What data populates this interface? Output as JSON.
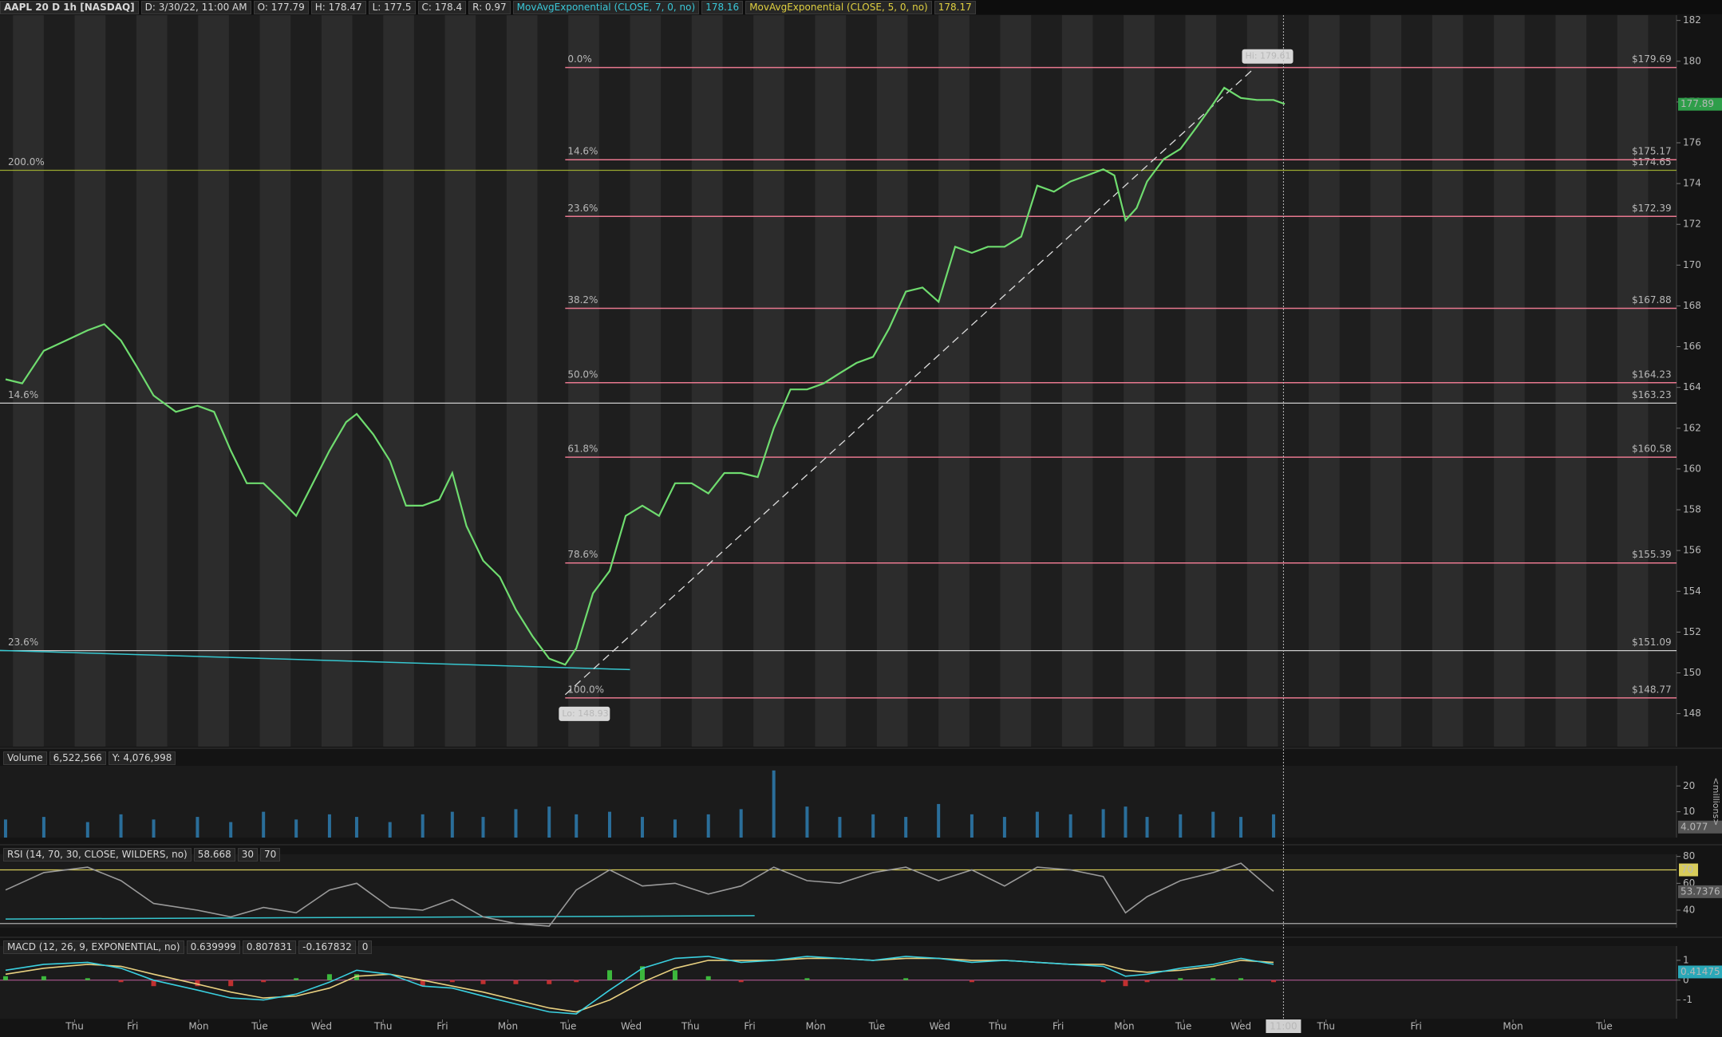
{
  "header": {
    "items": [
      "AAPL 20 D 1h [NASDAQ]",
      "D: 3/30/22, 11:00 AM",
      "O: 177.79",
      "H: 178.47",
      "L: 177.5",
      "C: 178.4",
      "R: 0.97"
    ],
    "studies": [
      {
        "label": "MovAvgExponential (CLOSE, 7, 0, no)",
        "value": "178.16",
        "color": "#3ac7d8"
      },
      {
        "label": "MovAvgExponential (CLOSE, 5, 0, no)",
        "value": "178.17",
        "color": "#e0d040"
      }
    ]
  },
  "chart_data": [
    {
      "type": "line",
      "x": [
        -1.12,
        -0.85,
        -0.5,
        -0.14,
        0.21,
        0.48,
        0.75,
        1.01,
        1.28,
        1.64,
        1.99,
        2.26,
        2.53,
        2.79,
        3.06,
        3.33,
        3.59,
        3.86,
        4.13,
        4.4,
        4.57,
        4.84,
        5.11,
        5.37,
        5.64,
        5.91,
        6.12,
        6.35,
        6.62,
        6.89,
        7.15,
        7.42,
        7.69,
        7.95,
        8.13,
        8.4,
        8.67,
        8.93,
        9.2,
        9.47,
        9.73,
        10.0,
        10.27,
        10.53,
        10.8,
        11.07,
        11.33,
        11.6,
        11.87,
        12.14,
        12.4,
        12.67,
        12.94,
        13.2,
        13.47,
        13.74,
        14.0,
        14.27,
        14.54,
        14.8,
        15.07,
        15.34,
        15.6,
        15.87,
        16.14,
        16.41,
        16.67,
        16.85,
        17.03,
        17.21,
        17.38,
        17.65,
        17.92,
        18.19,
        18.45,
        18.63,
        18.9,
        19.16,
        19.43,
        19.61
      ],
      "series": [
        {
          "color": "#6fdc6f",
          "values": [
            164.4,
            164.2,
            165.8,
            166.3,
            166.8,
            167.1,
            166.3,
            165.0,
            163.6,
            162.8,
            163.1,
            162.8,
            160.9,
            159.3,
            159.3,
            158.5,
            157.7,
            159.3,
            160.9,
            162.3,
            162.7,
            161.7,
            160.4,
            158.2,
            158.2,
            158.5,
            159.8,
            157.2,
            155.5,
            154.7,
            153.1,
            151.8,
            150.7,
            150.4,
            151.2,
            153.9,
            155.0,
            157.7,
            158.2,
            157.7,
            159.3,
            159.3,
            158.8,
            159.8,
            159.8,
            159.6,
            162.0,
            163.9,
            163.9,
            164.2,
            164.7,
            165.2,
            165.5,
            166.9,
            168.7,
            168.9,
            168.2,
            170.9,
            170.6,
            170.9,
            170.9,
            171.4,
            173.9,
            173.6,
            174.1,
            174.4,
            174.7,
            174.4,
            172.2,
            172.8,
            174.1,
            175.2,
            175.7,
            176.8,
            177.9,
            178.7,
            178.2,
            178.1,
            178.1,
            177.9
          ]
        }
      ],
      "xlim": [
        -1.21,
        25.96
      ],
      "xticks": [
        {
          "value": 0,
          "label": "Thu"
        },
        {
          "value": 0.94,
          "label": "Fri"
        },
        {
          "value": 2.01,
          "label": "Mon"
        },
        {
          "value": 3.0,
          "label": "Tue"
        },
        {
          "value": 4.0,
          "label": "Wed"
        },
        {
          "value": 5.0,
          "label": "Thu"
        },
        {
          "value": 5.96,
          "label": "Fri"
        },
        {
          "value": 7.02,
          "label": "Mon"
        },
        {
          "value": 8.0,
          "label": "Tue"
        },
        {
          "value": 9.02,
          "label": "Wed"
        },
        {
          "value": 9.98,
          "label": "Thu"
        },
        {
          "value": 10.94,
          "label": "Fri"
        },
        {
          "value": 12.01,
          "label": "Mon"
        },
        {
          "value": 13.0,
          "label": "Tue"
        },
        {
          "value": 14.02,
          "label": "Wed"
        },
        {
          "value": 14.96,
          "label": "Thu"
        },
        {
          "value": 15.94,
          "label": "Fri"
        },
        {
          "value": 17.01,
          "label": "Mon"
        },
        {
          "value": 17.97,
          "label": "Tue"
        },
        {
          "value": 18.9,
          "label": "Wed"
        },
        {
          "value": 19.59,
          "label": "11:00",
          "highlight": true
        },
        {
          "value": 20.28,
          "label": "Thu"
        },
        {
          "value": 21.74,
          "label": "Fri"
        },
        {
          "value": 23.31,
          "label": "Mon"
        },
        {
          "value": 24.79,
          "label": "Tue"
        }
      ],
      "ylim": [
        146.38,
        182.26
      ],
      "yticks": [
        148,
        150,
        152,
        154,
        156,
        158,
        160,
        162,
        164,
        166,
        168,
        170,
        172,
        174,
        176,
        178,
        180,
        182
      ],
      "fib_color": "#e8788f",
      "fib_levels": [
        {
          "label": "0.0%",
          "value": 179.69,
          "value_label": "$179.69"
        },
        {
          "label": "14.6%",
          "value": 175.17,
          "value_label": "$175.17"
        },
        {
          "label": "23.6%",
          "value": 172.39,
          "value_label": "$172.39"
        },
        {
          "label": "38.2%",
          "value": 167.88,
          "value_label": "$167.88"
        },
        {
          "label": "50.0%",
          "value": 164.23,
          "value_label": "$164.23"
        },
        {
          "label": "61.8%",
          "value": 160.58,
          "value_label": "$160.58"
        },
        {
          "label": "78.6%",
          "value": 155.39,
          "value_label": "$155.39"
        },
        {
          "label": "100.0%",
          "value": 148.77,
          "value_label": "$148.77"
        }
      ],
      "ref_lines": [
        {
          "label": "200.0%",
          "value": 174.65,
          "value_label": "$174.65",
          "color": "#9aa830"
        },
        {
          "label": "14.6%",
          "value": 163.23,
          "value_label": "$163.23",
          "color": "#cccccc"
        },
        {
          "label": "23.6%",
          "value": 151.09,
          "value_label": "$151.09",
          "color": "#cccccc"
        }
      ],
      "high": {
        "x": 19.1,
        "value": 179.61,
        "label": "Hi: 179.61"
      },
      "low": {
        "x": 7.95,
        "value": 148.93,
        "label": "Lo: 148.93"
      },
      "trendline": {
        "color": "#36c6cf",
        "x": [
          -1.21,
          9.0
        ],
        "values": [
          151.1,
          150.16
        ]
      },
      "last": {
        "value": 177.89,
        "color": "#2f9e4a"
      }
    },
    {
      "type": "bar",
      "header_items": [
        "Volume",
        "6,522,566",
        "Y: 4,076,998"
      ],
      "x": [
        -1.12,
        -0.5,
        0.21,
        0.75,
        1.28,
        1.99,
        2.53,
        3.06,
        3.59,
        4.13,
        4.57,
        5.11,
        5.64,
        6.12,
        6.62,
        7.15,
        7.69,
        8.13,
        8.67,
        9.2,
        9.73,
        10.27,
        10.8,
        11.33,
        11.87,
        12.4,
        12.94,
        13.47,
        14.0,
        14.54,
        15.07,
        15.6,
        16.14,
        16.67,
        17.03,
        17.38,
        17.92,
        18.45,
        18.9,
        19.43
      ],
      "values": [
        7,
        8,
        6,
        9,
        7,
        8,
        6,
        10,
        7,
        9,
        8,
        6,
        9,
        10,
        8,
        11,
        12,
        9,
        10,
        8,
        7,
        9,
        11,
        26,
        12,
        8,
        9,
        8,
        13,
        9,
        8,
        10,
        9,
        11,
        12,
        8,
        9,
        10,
        8,
        9
      ],
      "color": "#2a6e9a",
      "xlim": [
        -1.21,
        25.96
      ],
      "ylim": [
        0,
        27.8
      ],
      "yticks": [
        10,
        20
      ],
      "unit": "<millions>",
      "last": {
        "value": 4.077,
        "color": "#555555"
      }
    },
    {
      "type": "line",
      "header_items": [
        "RSI (14, 70, 30, CLOSE, WILDERS, no)",
        "58.668",
        "30",
        "70"
      ],
      "x": [
        -1.12,
        -0.5,
        0.21,
        0.75,
        1.28,
        1.99,
        2.53,
        3.06,
        3.59,
        4.13,
        4.57,
        5.11,
        5.64,
        6.12,
        6.62,
        7.15,
        7.69,
        8.13,
        8.67,
        9.2,
        9.73,
        10.27,
        10.8,
        11.33,
        11.87,
        12.4,
        12.94,
        13.47,
        14.0,
        14.54,
        15.07,
        15.6,
        16.14,
        16.67,
        17.03,
        17.38,
        17.92,
        18.45,
        18.9,
        19.43
      ],
      "series": [
        {
          "color": "#9a9a9a",
          "values": [
            55,
            68,
            72,
            62,
            45,
            40,
            35,
            42,
            38,
            55,
            60,
            42,
            40,
            48,
            35,
            30,
            28,
            55,
            70,
            58,
            60,
            52,
            58,
            72,
            62,
            60,
            68,
            72,
            62,
            70,
            58,
            72,
            70,
            65,
            38,
            50,
            62,
            68,
            75,
            54
          ]
        }
      ],
      "xlim": [
        -1.21,
        25.96
      ],
      "ylim": [
        26.9,
        81.6
      ],
      "yticks": [
        40,
        60,
        80
      ],
      "ref_lines": [
        {
          "value": 70,
          "color": "#d8cc5a",
          "show_value": true
        },
        {
          "value": 30,
          "color": "#aaaaaa"
        }
      ],
      "trendline": {
        "color": "#36c6cf",
        "x": [
          -1.12,
          11.02
        ],
        "values": [
          33.4,
          35.9
        ]
      },
      "last": {
        "value": 53.7376,
        "color": "#555555"
      }
    },
    {
      "type": "line",
      "header_items": [
        "MACD (12, 26, 9, EXPONENTIAL, no)",
        "0.639999",
        "0.807831",
        "-0.167832",
        "0"
      ],
      "x": [
        -1.12,
        -0.5,
        0.21,
        0.75,
        1.28,
        1.99,
        2.53,
        3.06,
        3.59,
        4.13,
        4.57,
        5.11,
        5.64,
        6.12,
        6.62,
        7.15,
        7.69,
        8.13,
        8.67,
        9.2,
        9.73,
        10.27,
        10.8,
        11.33,
        11.87,
        12.4,
        12.94,
        13.47,
        14.0,
        14.54,
        15.07,
        15.6,
        16.14,
        16.67,
        17.03,
        17.38,
        17.92,
        18.45,
        18.9,
        19.43
      ],
      "series": [
        {
          "style": "histogram",
          "color": "#3cb83c",
          "negative_color": "#c03030",
          "values": [
            0.2,
            0.2,
            0.1,
            -0.1,
            -0.3,
            -0.3,
            -0.3,
            -0.1,
            0.1,
            0.3,
            0.3,
            0,
            -0.3,
            -0.1,
            -0.2,
            -0.2,
            -0.2,
            -0.1,
            0.5,
            0.7,
            0.5,
            0.2,
            -0.1,
            0,
            0.1,
            0,
            0,
            0.1,
            0,
            -0.1,
            0,
            0,
            0,
            -0.1,
            -0.3,
            -0.1,
            0.1,
            0.1,
            0.1,
            -0.1
          ]
        },
        {
          "color": "#e8d080",
          "values": [
            0.3,
            0.6,
            0.8,
            0.7,
            0.3,
            -0.2,
            -0.6,
            -0.9,
            -0.8,
            -0.4,
            0.2,
            0.3,
            0,
            -0.3,
            -0.6,
            -1.0,
            -1.4,
            -1.6,
            -1.0,
            -0.1,
            0.6,
            1.0,
            1.0,
            1.0,
            1.1,
            1.1,
            1.0,
            1.1,
            1.1,
            1.0,
            1.0,
            0.9,
            0.8,
            0.8,
            0.5,
            0.4,
            0.5,
            0.7,
            1.0,
            0.9
          ]
        },
        {
          "color": "#3ad0e0",
          "values": [
            0.5,
            0.8,
            0.9,
            0.6,
            0,
            -0.5,
            -0.9,
            -1.0,
            -0.7,
            -0.1,
            0.5,
            0.3,
            -0.3,
            -0.4,
            -0.8,
            -1.2,
            -1.6,
            -1.7,
            -0.5,
            0.6,
            1.1,
            1.2,
            0.9,
            1.0,
            1.2,
            1.1,
            1.0,
            1.2,
            1.1,
            0.9,
            1.0,
            0.9,
            0.8,
            0.7,
            0.2,
            0.3,
            0.6,
            0.8,
            1.1,
            0.8
          ]
        }
      ],
      "xlim": [
        -1.21,
        25.96
      ],
      "ylim": [
        -1.94,
        1.72
      ],
      "yticks": [
        -1,
        0,
        1
      ],
      "zero_line_color": "#c060a0",
      "last": {
        "value": 0.41475,
        "color": "#2aa8b8"
      }
    }
  ]
}
